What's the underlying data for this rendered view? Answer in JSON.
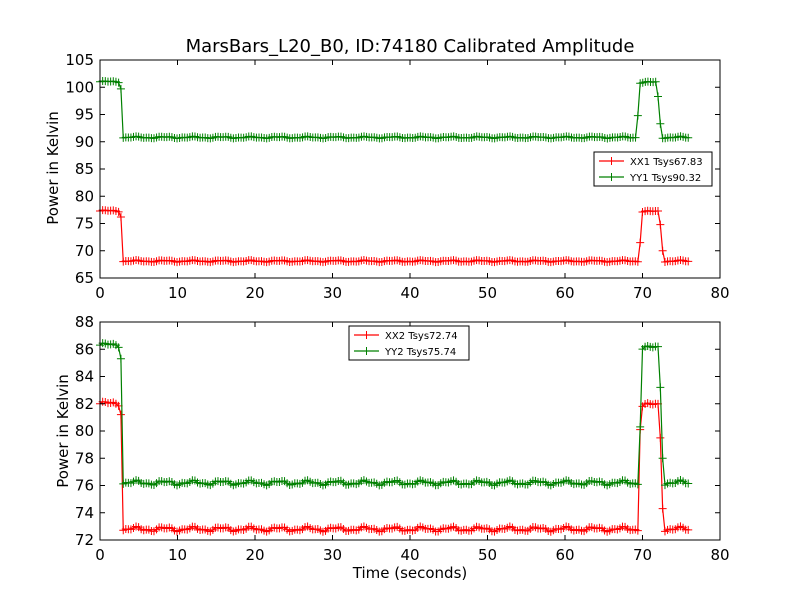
{
  "colors": {
    "xx": "#ff0000",
    "yy": "#008000"
  },
  "chart_data": [
    {
      "type": "line",
      "title": "MarsBars_L20_B0, ID:74180 Calibrated Amplitude",
      "xlabel": "",
      "ylabel": "Power in Kelvin",
      "xlim": [
        0,
        80
      ],
      "ylim": [
        65,
        105
      ],
      "xticks": [
        0,
        10,
        20,
        30,
        40,
        50,
        60,
        70,
        80
      ],
      "yticks": [
        65,
        70,
        75,
        80,
        85,
        90,
        95,
        100,
        105
      ],
      "legend": "right",
      "grid": false,
      "series": [
        {
          "name": "XX1 Tsys67.83",
          "color": "red",
          "segments": [
            {
              "x0": 0.0,
              "x1": 2.4,
              "level": 77.3,
              "step": 0.33
            },
            {
              "x0": 2.7,
              "x1": 2.7,
              "level": 76.2,
              "step": 0.33
            },
            {
              "x0": 3.0,
              "x1": 69.4,
              "level": 68.1,
              "step": 0.33
            },
            {
              "x0": 69.7,
              "x1": 69.7,
              "level": 71.5,
              "step": 0.33
            },
            {
              "x0": 70.0,
              "x1": 72.0,
              "level": 77.2,
              "step": 0.33
            },
            {
              "x0": 72.3,
              "x1": 72.3,
              "level": 74.8,
              "step": 0.33
            },
            {
              "x0": 72.6,
              "x1": 72.6,
              "level": 70.0,
              "step": 0.33
            },
            {
              "x0": 72.9,
              "x1": 75.9,
              "level": 68.1,
              "step": 0.33
            }
          ]
        },
        {
          "name": "YY1 Tsys90.32",
          "color": "green",
          "segments": [
            {
              "x0": 0.0,
              "x1": 2.4,
              "level": 101.0,
              "step": 0.33
            },
            {
              "x0": 2.7,
              "x1": 2.7,
              "level": 99.7,
              "step": 0.33
            },
            {
              "x0": 3.0,
              "x1": 69.1,
              "level": 90.8,
              "step": 0.33
            },
            {
              "x0": 69.4,
              "x1": 69.4,
              "level": 94.8,
              "step": 0.33
            },
            {
              "x0": 69.7,
              "x1": 71.7,
              "level": 100.9,
              "step": 0.33
            },
            {
              "x0": 72.0,
              "x1": 72.0,
              "level": 98.3,
              "step": 0.33
            },
            {
              "x0": 72.3,
              "x1": 72.3,
              "level": 93.3,
              "step": 0.33
            },
            {
              "x0": 72.6,
              "x1": 75.9,
              "level": 90.8,
              "step": 0.33
            }
          ]
        }
      ]
    },
    {
      "type": "line",
      "title": "",
      "xlabel": "Time (seconds)",
      "ylabel": "Power in Kelvin",
      "xlim": [
        0,
        80
      ],
      "ylim": [
        72,
        88
      ],
      "xticks": [
        0,
        10,
        20,
        30,
        40,
        50,
        60,
        70,
        80
      ],
      "yticks": [
        72,
        74,
        76,
        78,
        80,
        82,
        84,
        86,
        88
      ],
      "legend": "top-center",
      "grid": false,
      "series": [
        {
          "name": "XX2 Tsys72.74",
          "color": "red",
          "segments": [
            {
              "x0": 0.0,
              "x1": 2.4,
              "level": 82.0,
              "step": 0.33
            },
            {
              "x0": 2.7,
              "x1": 2.7,
              "level": 81.2,
              "step": 0.33
            },
            {
              "x0": 3.0,
              "x1": 69.4,
              "level": 72.8,
              "step": 0.33
            },
            {
              "x0": 69.7,
              "x1": 69.7,
              "level": 80.1,
              "step": 0.33
            },
            {
              "x0": 70.0,
              "x1": 72.0,
              "level": 81.9,
              "step": 0.33
            },
            {
              "x0": 72.3,
              "x1": 72.3,
              "level": 79.5,
              "step": 0.33
            },
            {
              "x0": 72.6,
              "x1": 72.6,
              "level": 74.3,
              "step": 0.33
            },
            {
              "x0": 72.9,
              "x1": 75.9,
              "level": 72.8,
              "step": 0.33
            }
          ]
        },
        {
          "name": "YY2 Tsys75.74",
          "color": "green",
          "segments": [
            {
              "x0": 0.0,
              "x1": 2.4,
              "level": 86.3,
              "step": 0.33
            },
            {
              "x0": 2.7,
              "x1": 2.7,
              "level": 85.3,
              "step": 0.33
            },
            {
              "x0": 3.0,
              "x1": 69.4,
              "level": 76.2,
              "step": 0.33
            },
            {
              "x0": 69.7,
              "x1": 69.7,
              "level": 80.3,
              "step": 0.33
            },
            {
              "x0": 70.0,
              "x1": 72.0,
              "level": 86.1,
              "step": 0.33
            },
            {
              "x0": 72.3,
              "x1": 72.3,
              "level": 83.2,
              "step": 0.33
            },
            {
              "x0": 72.6,
              "x1": 72.6,
              "level": 78.0,
              "step": 0.33
            },
            {
              "x0": 72.9,
              "x1": 75.9,
              "level": 76.2,
              "step": 0.33
            }
          ]
        }
      ]
    }
  ]
}
